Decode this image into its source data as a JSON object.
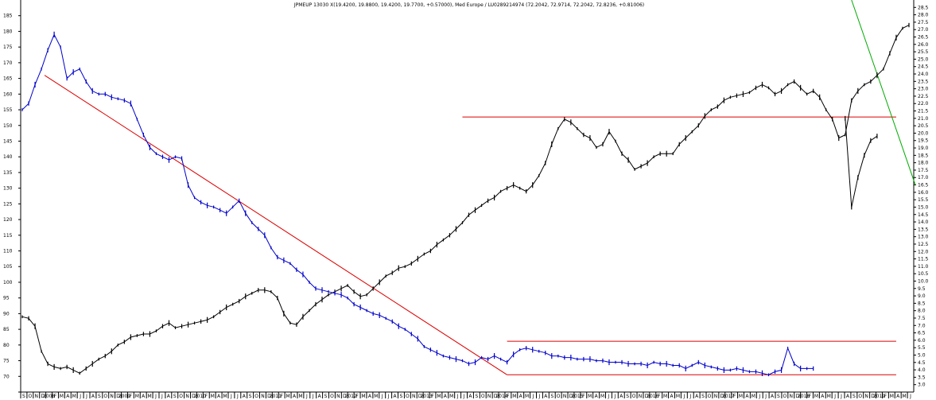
{
  "chart_data": {
    "type": "line",
    "title": "JPMEUP 13030 X(19.4200, 19.8800, 19.4200, 19.7700, +0.57000), Med Europe / LU0289214974 (72.2042, 72.9714, 72.2042, 72.8236, +0.81006)",
    "left_axis": {
      "min": 65,
      "max": 190,
      "ticks": [
        65,
        70,
        75,
        80,
        85,
        90,
        95,
        100,
        105,
        110,
        115,
        120,
        125,
        130,
        135,
        140,
        145,
        150,
        155,
        160,
        165,
        170,
        175,
        180,
        185
      ],
      "tick_labels": [
        "",
        "70",
        "75",
        "80",
        "85",
        "90",
        "95",
        "100",
        "105",
        "110",
        "115",
        "120",
        "125",
        "130",
        "135",
        "140",
        "145",
        "150",
        "155",
        "160",
        "165",
        "170",
        "175",
        "180",
        "185"
      ]
    },
    "right_axis": {
      "min": 2.5,
      "max": 29,
      "ticks": [
        3.0,
        3.5,
        4.0,
        4.5,
        5.0,
        5.5,
        6.0,
        6.5,
        7.0,
        7.5,
        8.0,
        8.5,
        9.0,
        9.5,
        10.0,
        10.5,
        11.0,
        11.5,
        12.0,
        12.5,
        13.0,
        13.5,
        14.0,
        14.5,
        15.0,
        15.5,
        16.0,
        16.5,
        17.0,
        17.5,
        18.0,
        18.5,
        19.0,
        19.5,
        20.0,
        20.5,
        21.0,
        21.5,
        22.0,
        22.5,
        23.0,
        23.5,
        24.0,
        24.5,
        25.0,
        25.5,
        26.0,
        26.5,
        27.0,
        27.5,
        28.0,
        28.5
      ],
      "tick_labels": [
        "3.0",
        "3.5",
        "4.0",
        "4.5",
        "5.0",
        "5.5",
        "6.0",
        "6.5",
        "7.0",
        "7.5",
        "8.0",
        "8.5",
        "9.0",
        "9.5",
        "10.0",
        "10.5",
        "11.0",
        "11.5",
        "12.0",
        "12.5",
        "13.0",
        "13.5",
        "14.0",
        "14.5",
        "15.0",
        "15.5",
        "16.0",
        "16.5",
        "17.0",
        "17.5",
        "18.0",
        "18.5",
        "19.0",
        "19.5",
        "20.0",
        "20.5",
        "21.0",
        "21.5",
        "22.0",
        "22.5",
        "23.0",
        "23.5",
        "24.0",
        "24.5",
        "25.0",
        "25.5",
        "26.0",
        "26.5",
        "27.0",
        "27.5",
        "28.0",
        "28.5"
      ]
    },
    "x_axis": {
      "n": 140,
      "ticks": [
        0,
        1,
        2,
        3,
        4,
        5,
        6,
        7,
        8,
        9,
        10,
        11,
        12,
        13,
        14,
        15,
        16,
        17,
        18,
        19,
        20,
        21,
        22,
        23,
        24,
        25,
        26,
        27,
        28,
        29,
        30,
        31,
        32,
        33,
        34,
        35,
        36,
        37,
        38,
        39,
        40,
        41,
        42,
        43,
        44,
        45,
        46,
        47,
        48,
        49,
        50,
        51,
        52,
        53,
        54,
        55,
        56,
        57,
        58,
        59,
        60,
        61,
        62,
        63,
        64,
        65,
        66,
        67,
        68,
        69,
        70,
        71,
        72,
        73,
        74,
        75,
        76,
        77,
        78,
        79,
        80,
        81,
        82,
        83,
        84,
        85,
        86,
        87,
        88,
        89,
        90,
        91,
        92,
        93,
        94,
        95,
        96,
        97,
        98,
        99,
        100,
        101,
        102,
        103,
        104,
        105,
        106,
        107,
        108,
        109,
        110,
        111,
        112,
        113,
        114,
        115,
        116,
        117,
        118,
        119,
        120,
        121,
        122,
        123,
        124,
        125,
        126,
        127,
        128,
        129,
        130,
        131,
        132,
        133,
        134,
        135,
        136,
        137,
        138,
        139
      ],
      "tick_labels": [
        "S",
        "O",
        "N",
        "D",
        "2008",
        "F",
        "M",
        "A",
        "M",
        "J",
        "J",
        "A",
        "S",
        "O",
        "N",
        "D",
        "2009",
        "F",
        "M",
        "A",
        "M",
        "J",
        "J",
        "A",
        "S",
        "O",
        "N",
        "D",
        "2010",
        "F",
        "M",
        "A",
        "M",
        "J",
        "J",
        "A",
        "S",
        "O",
        "N",
        "D",
        "2011",
        "F",
        "M",
        "A",
        "M",
        "J",
        "J",
        "A",
        "S",
        "O",
        "N",
        "D",
        "2012",
        "F",
        "M",
        "A",
        "M",
        "J",
        "J",
        "A",
        "S",
        "O",
        "N",
        "D",
        "2013",
        "F",
        "M",
        "A",
        "M",
        "J",
        "J",
        "A",
        "S",
        "O",
        "N",
        "D",
        "2014",
        "F",
        "M",
        "A",
        "M",
        "J",
        "J",
        "A",
        "S",
        "O",
        "N",
        "D",
        "2015",
        "F",
        "M",
        "A",
        "M",
        "J",
        "J",
        "A",
        "S",
        "O",
        "N",
        "D",
        "2016",
        "F",
        "M",
        "A",
        "M",
        "J",
        "J",
        "A",
        "S",
        "O",
        "N",
        "D",
        "2017",
        "F",
        "M",
        "A",
        "M",
        "J",
        "J",
        "A",
        "S",
        "O",
        "N",
        "D",
        "2018",
        "F",
        "M",
        "A",
        "M",
        "J",
        "J",
        "A",
        "S",
        "O",
        "N",
        "D",
        "2019",
        "F",
        "M",
        "A",
        "M",
        "J"
      ]
    },
    "series": [
      {
        "axis": "left",
        "color": "#000000",
        "style": "bars",
        "values": [
          89.0,
          88.5,
          86.0,
          78.0,
          74.0,
          73.0,
          72.5,
          73.0,
          72.0,
          71.0,
          72.5,
          74.0,
          75.5,
          76.5,
          78.0,
          80.0,
          81.0,
          82.5,
          83.0,
          83.5,
          83.5,
          84.5,
          86.0,
          87.0,
          85.5,
          86.0,
          86.5,
          87.0,
          87.5,
          88.0,
          89.0,
          90.5,
          92.0,
          93.0,
          94.0,
          95.5,
          96.5,
          97.5,
          97.5,
          97.0,
          95.0,
          90.0,
          87.0,
          86.5,
          89.0,
          91.0,
          93.0,
          94.5,
          96.0,
          97.0,
          98.0,
          99.0,
          97.0,
          95.5,
          96.0,
          98.0,
          100.0,
          102.0,
          103.0,
          104.5,
          105.0,
          106.0,
          107.5,
          109.0,
          110.0,
          112.0,
          113.5,
          115.0,
          117.0,
          119.0,
          121.5,
          123.0,
          124.5,
          126.0,
          127.0,
          129.0,
          130.0,
          131.0,
          130.0,
          129.0,
          131.0,
          134.0,
          138.0,
          144.0,
          149.0,
          152.0,
          151.0,
          149.0,
          147.0,
          146.0,
          143.0,
          144.0,
          148.0,
          145.0,
          141.0,
          139.0,
          136.0,
          137.0,
          138.0,
          140.0,
          141.0,
          141.0,
          141.0,
          144.0,
          146.0,
          148.0,
          150.0,
          153.0,
          155.0,
          156.0,
          158.0,
          159.0,
          159.5,
          160.0,
          160.5,
          162.0,
          163.0,
          162.0,
          160.0,
          161.0,
          163.0,
          164.0,
          162.0,
          160.0,
          161.0,
          159.0,
          155.0,
          152.0,
          146.0,
          147.0,
          158.0,
          161.0,
          163.0,
          164.0,
          166.0,
          168.0,
          173.0,
          178.0,
          181.0,
          182.0
        ],
        "right_axis_values": [
          null,
          null,
          null,
          null,
          null,
          null,
          null,
          null,
          null,
          null,
          null,
          null,
          null,
          null,
          null,
          null,
          null,
          null,
          null,
          null,
          null,
          null,
          null,
          null,
          null,
          null,
          null,
          null,
          null,
          null,
          null,
          null,
          null,
          null,
          null,
          null,
          null,
          null,
          null,
          null,
          null,
          null,
          null,
          null,
          null,
          null,
          null,
          null,
          null,
          null,
          null,
          null,
          null,
          null,
          null,
          null,
          null,
          null,
          null,
          null,
          null,
          null,
          null,
          null,
          null,
          null,
          null,
          null,
          null,
          null,
          null,
          null,
          null,
          null,
          null,
          null,
          null,
          null,
          null,
          null,
          null,
          null,
          null,
          null,
          null,
          null,
          null,
          null,
          null,
          null,
          null,
          null,
          null,
          null,
          null,
          null,
          null,
          null,
          null,
          null,
          null,
          null,
          null,
          null,
          null,
          null,
          null,
          null,
          null,
          null,
          null,
          null,
          null,
          null,
          null,
          null,
          null,
          null,
          null,
          null,
          null,
          null,
          null,
          null,
          null,
          null,
          null,
          null,
          null,
          21.0,
          15.0,
          17.0,
          18.5,
          19.5,
          19.8,
          null,
          null,
          null,
          null,
          null
        ]
      },
      {
        "axis": "left",
        "color": "#0000cc",
        "style": "bars",
        "values": [
          155.0,
          157.0,
          163.0,
          168.0,
          174.0,
          179.0,
          175.0,
          165.0,
          167.0,
          168.0,
          164.0,
          161.0,
          160.0,
          160.0,
          159.0,
          158.5,
          158.0,
          157.0,
          152.0,
          147.0,
          143.0,
          141.0,
          140.0,
          139.0,
          140.0,
          139.5,
          131.0,
          127.0,
          125.5,
          124.5,
          124.0,
          123.0,
          122.0,
          124.0,
          126.0,
          122.0,
          119.0,
          117.0,
          115.0,
          111.0,
          108.0,
          107.0,
          106.0,
          104.0,
          102.5,
          100.0,
          98.0,
          97.5,
          97.0,
          96.5,
          96.0,
          95.0,
          93.0,
          92.0,
          91.0,
          90.0,
          89.5,
          88.5,
          87.5,
          86.0,
          85.0,
          83.5,
          82.0,
          79.5,
          78.5,
          77.5,
          76.5,
          76.0,
          75.5,
          75.0,
          74.0,
          74.5,
          76.0,
          75.5,
          76.5,
          75.5,
          74.5,
          77.0,
          78.5,
          79.0,
          78.5,
          78.0,
          77.5,
          76.5,
          76.5,
          76.0,
          76.0,
          75.5,
          75.5,
          75.5,
          75.0,
          75.0,
          74.5,
          74.5,
          74.5,
          74.0,
          74.0,
          74.0,
          73.5,
          74.5,
          74.0,
          74.0,
          73.5,
          73.5,
          72.5,
          73.5,
          74.5,
          73.5,
          73.0,
          72.5,
          72.0,
          72.0,
          72.5,
          72.0,
          71.5,
          71.5,
          71.0,
          70.5,
          71.5,
          72.0,
          79.0,
          74.0,
          72.5,
          72.5,
          72.5,
          null,
          null,
          null,
          null,
          null,
          null,
          null,
          null,
          null,
          null,
          null,
          null,
          null,
          null,
          null
        ]
      }
    ],
    "trendlines": [
      {
        "color": "#dd0000",
        "axis": "left",
        "from": [
          3.5,
          166.0
        ],
        "to": [
          76.0,
          70.5
        ]
      },
      {
        "color": "#dd0000",
        "axis": "left",
        "from": [
          76.0,
          70.5
        ],
        "to": [
          137.0,
          70.5
        ]
      },
      {
        "color": "#dd0000",
        "axis": "left",
        "from": [
          76.0,
          81.2
        ],
        "to": [
          137.0,
          81.2
        ]
      },
      {
        "color": "#dd0000",
        "axis": "left",
        "from": [
          69.0,
          152.7
        ],
        "to": [
          137.0,
          152.7
        ]
      },
      {
        "color": "#00aa00",
        "axis": "right",
        "from": [
          130.0,
          29.0
        ],
        "to": [
          140.0,
          16.5
        ]
      }
    ],
    "xlabel": "",
    "ylabel": "",
    "grid": false,
    "legend": "none"
  }
}
